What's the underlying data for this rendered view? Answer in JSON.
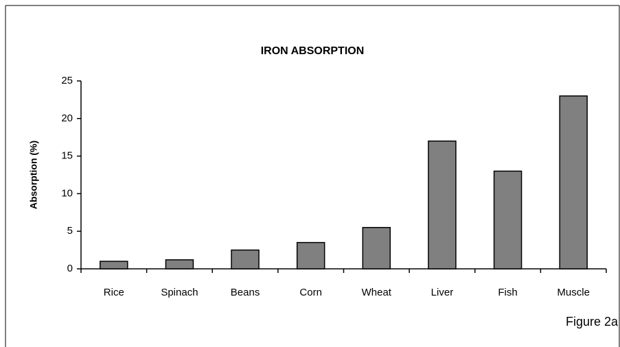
{
  "chart_data": {
    "type": "bar",
    "title": "IRON ABSORPTION",
    "y_label": "Absorption (%)",
    "annotation": "Figure 2a",
    "categories": [
      "Rice",
      "Spinach",
      "Beans",
      "Corn",
      "Wheat",
      "Liver",
      "Fish",
      "Muscle"
    ],
    "values": [
      1,
      1.2,
      2.5,
      3.5,
      5.5,
      17,
      13,
      23
    ],
    "color": "#808080",
    "ylim": [
      0,
      25
    ],
    "yticks": [
      0,
      5,
      10,
      15,
      20,
      25
    ],
    "grid": false
  }
}
